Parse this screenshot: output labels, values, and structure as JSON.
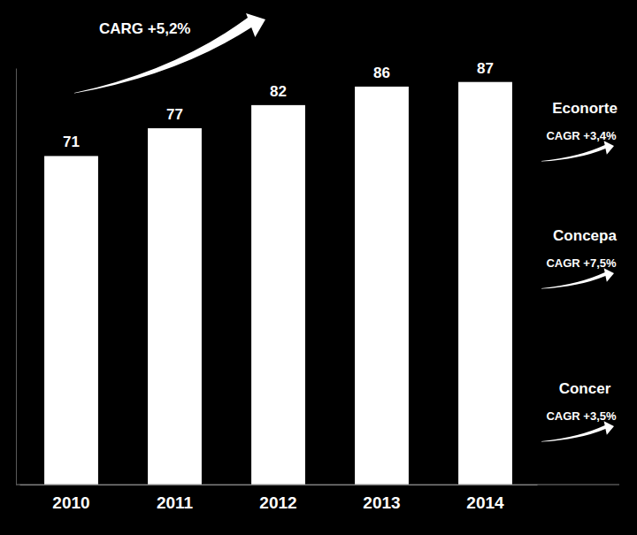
{
  "chart_data": {
    "type": "bar",
    "categories": [
      "2010",
      "2011",
      "2012",
      "2013",
      "2014"
    ],
    "values": [
      71,
      77,
      82,
      86,
      87
    ],
    "color": "#ffffff",
    "ylim": [
      0,
      90
    ],
    "yticks": [],
    "data_labels": true,
    "tick_labels": "x",
    "annotation": "CARG +5,2%",
    "side_notes": [
      {
        "name": "Econorte",
        "text": "CAGR +3,4%"
      },
      {
        "name": "Concepa",
        "text": "CAGR +7,5%"
      },
      {
        "name": "Concer",
        "text": "CAGR +3,5%"
      }
    ]
  }
}
